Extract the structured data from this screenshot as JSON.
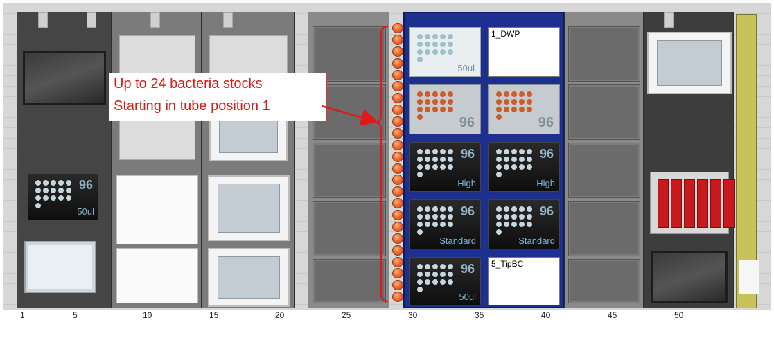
{
  "annotation": {
    "line1": "Up to 24 bacteria stocks",
    "line2": "Starting in tube position 1"
  },
  "labware": {
    "pos1_label": "1_DWP",
    "pos5_label": "5_TipBC",
    "dwp_plate_sub": "50ul",
    "plate96_number": "96",
    "tips": [
      {
        "number": "96",
        "sub": "High"
      },
      {
        "number": "96",
        "sub": "High"
      },
      {
        "number": "96",
        "sub": "Standard"
      },
      {
        "number": "96",
        "sub": "Standard"
      },
      {
        "number": "96",
        "sub": "50ul"
      }
    ],
    "left_tip": {
      "number": "96",
      "sub": "50ul"
    }
  },
  "axis_labels": [
    "1",
    "5",
    "10",
    "15",
    "20",
    "25",
    "30",
    "35",
    "40",
    "45",
    "50"
  ],
  "tube_count": 24,
  "colors": {
    "tube": "#f06a2a",
    "carrier_blue": "#1d2f8f",
    "annotation_red": "#e01818",
    "reservoir_red": "#c8191f"
  }
}
